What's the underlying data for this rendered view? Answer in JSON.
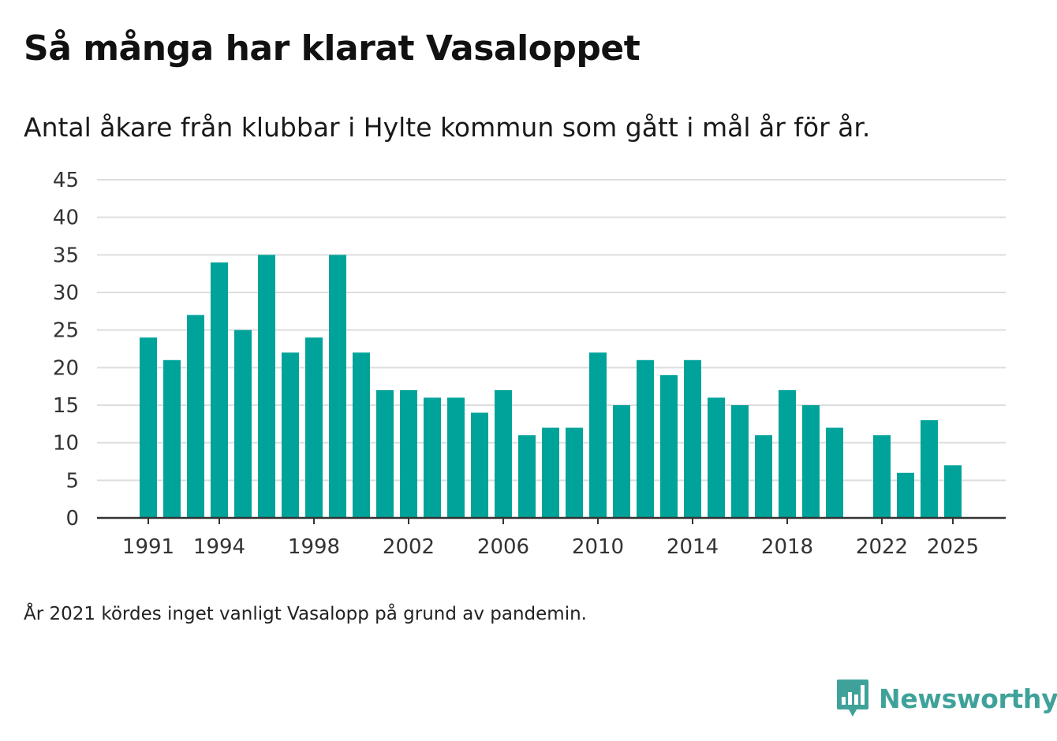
{
  "title": "Så många har klarat Vasaloppet",
  "subtitle": "Antal åkare från klubbar i Hylte kommun som gått i mål år för år.",
  "footnote": "År 2021 kördes inget vanligt Vasalopp på grund av pandemin.",
  "brand": {
    "name": "Newsworthy",
    "icon": "newsworthy-logo-icon",
    "color": "#3fa29a"
  },
  "colors": {
    "bar": "#00a39a",
    "grid": "#dddddd",
    "axis": "#333333"
  },
  "chart_data": {
    "type": "bar",
    "title": "Så många har klarat Vasaloppet",
    "subtitle": "Antal åkare från klubbar i Hylte kommun som gått i mål år för år.",
    "xlabel": "",
    "ylabel": "",
    "ylim": [
      0,
      45
    ],
    "yticks": [
      0,
      5,
      10,
      15,
      20,
      25,
      30,
      35,
      40,
      45
    ],
    "xticks": [
      1991,
      1994,
      1998,
      2002,
      2006,
      2010,
      2014,
      2018,
      2022,
      2025
    ],
    "grid": true,
    "categories": [
      1991,
      1992,
      1993,
      1994,
      1995,
      1996,
      1997,
      1998,
      1999,
      2000,
      2001,
      2002,
      2003,
      2004,
      2005,
      2006,
      2007,
      2008,
      2009,
      2010,
      2011,
      2012,
      2013,
      2014,
      2015,
      2016,
      2017,
      2018,
      2019,
      2020,
      2021,
      2022,
      2023,
      2024,
      2025
    ],
    "values": [
      24,
      21,
      27,
      34,
      25,
      35,
      22,
      24,
      35,
      22,
      17,
      17,
      16,
      16,
      14,
      17,
      11,
      12,
      12,
      22,
      15,
      21,
      19,
      21,
      16,
      15,
      11,
      17,
      15,
      12,
      null,
      11,
      6,
      13,
      7
    ]
  }
}
